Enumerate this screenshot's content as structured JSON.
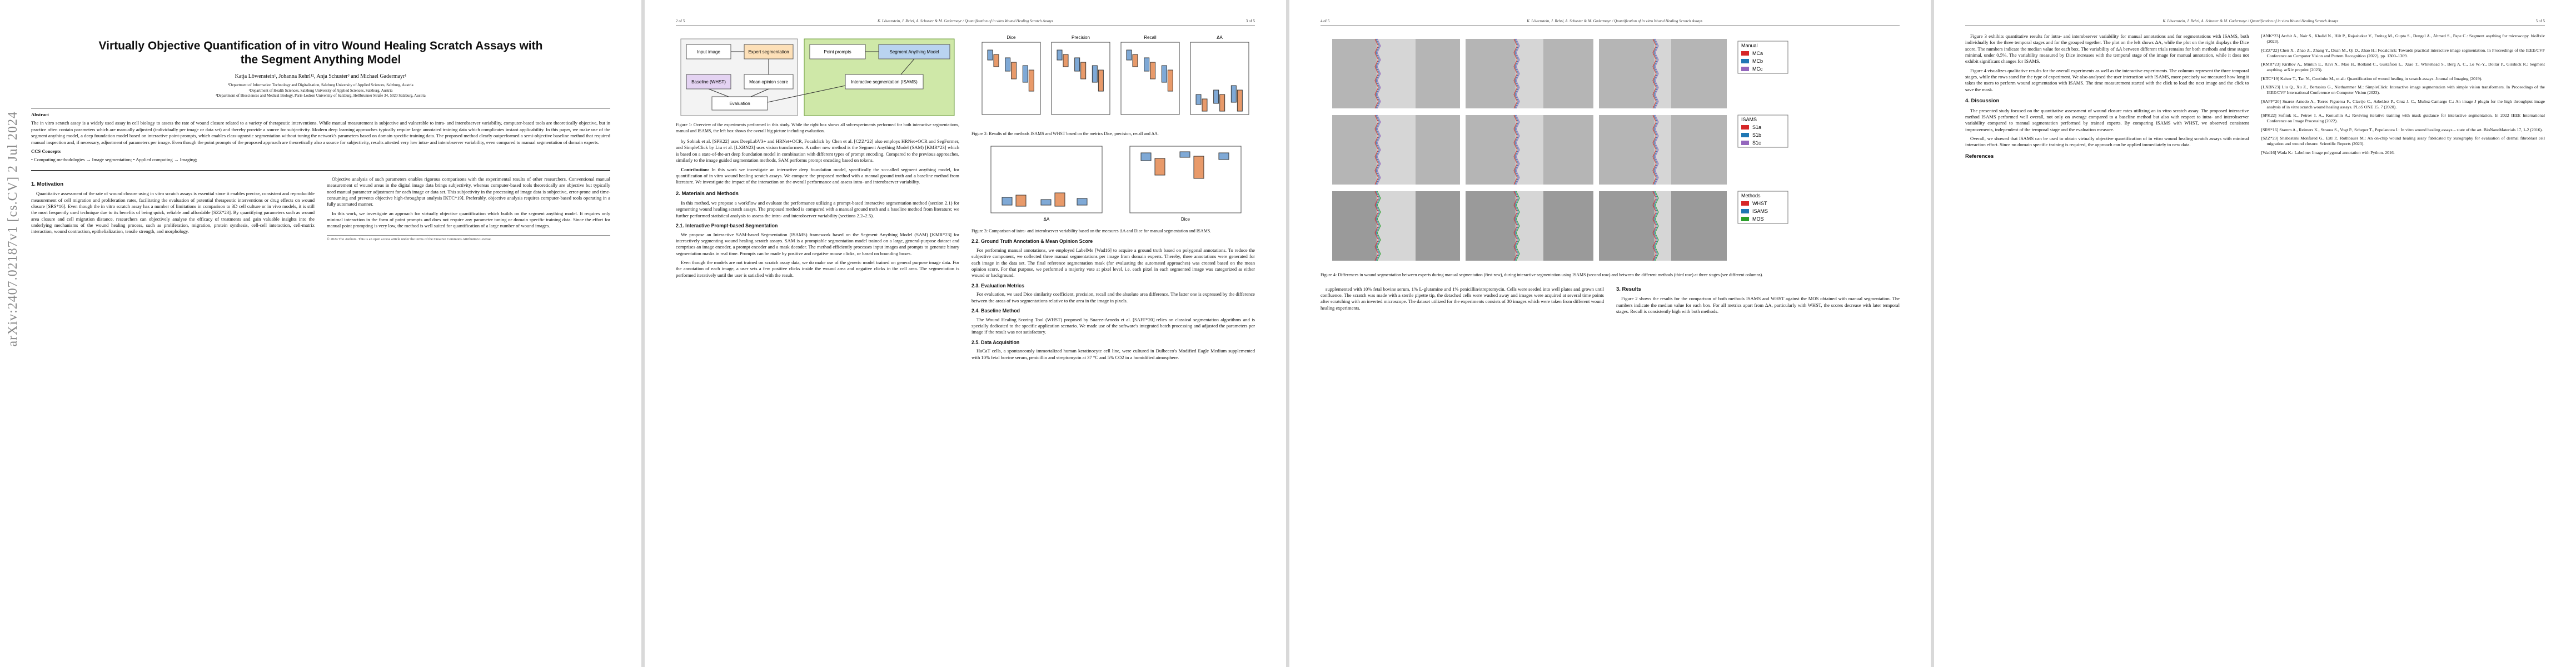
{
  "arxiv_stamp": "arXiv:2407.02187v1 [cs.CV] 2 Jul 2024",
  "running_title": "K. Löwenstein, J. Rehrl, A. Schuster & M. Gadermayr / Quantification of in vitro Wound Healing Scratch Assays",
  "page_numbers": [
    "2 of 5",
    "3 of 5",
    "4 of 5",
    "5 of 5"
  ],
  "page1": {
    "title": "Virtually Objective Quantification of in vitro Wound Healing Scratch Assays with the Segment Anything Model",
    "authors": "Katja Löwenstein¹, Johanna Rehrl¹², Anja Schuster³ and Michael Gadermayr¹",
    "affiliations": [
      "¹Department of Information Technology and Digitalisation, Salzburg University of Applied Sciences, Salzburg, Austria",
      "²Department of Health Sciences, Salzburg University of Applied Sciences, Salzburg, Austria",
      "³Department of Biosciences and Medical Biology, Paris-Lodron University of Salzburg, Hellbrunner Straße 34, 5020 Salzburg, Austria"
    ],
    "abstract_heading": "Abstract",
    "abstract": "The in vitro scratch assay is a widely used assay in cell biology to assess the rate of wound closure related to a variety of therapeutic interventions. While manual measurement is subjective and vulnerable to intra- and interobserver variability, computer-based tools are theoretically objective, but in practice often contain parameters which are manually adjusted (individually per image or data set) and thereby provide a source for subjectivity. Modern deep learning approaches typically require large annotated training data which complicates instant applicability. In this paper, we make use of the segment anything model, a deep foundation model based on interactive point-prompts, which enables class-agnostic segmentation without tuning the network's parameters based on domain specific training data. The proposed method clearly outperformed a semi-objective baseline method that required manual inspection and, if necessary, adjustment of parameters per image. Even though the point prompts of the proposed approach are theoretically also a source for subjectivity, results attested very low intra- and interobserver variability, even compared to manual segmentation of domain experts.",
    "ccs_heading": "CCS Concepts",
    "ccs": "• Computing methodologies → Image segmentation; • Applied computing → Imaging;",
    "section_heading": "1. Motivation",
    "paragraphs": [
      "Quantitative assessment of the rate of wound closure using in vitro scratch assays is essential since it enables precise, consistent and reproducible measurement of cell migration and proliferation rates, facilitating the evaluation of potential therapeutic interventions or drug effects on wound closure [SRS*16]. Even though the in vitro scratch assay has a number of limitations in comparison to 3D cell culture or in vivo models, it is still the most frequently used technique due to its benefits of being quick, reliable and affordable [SZZ*23]. By quantifying parameters such as wound area closure and cell migration distance, researchers can objectively analyse the efficacy of treatments and gain valuable insights into the underlying mechanisms of the wound healing process, such as proliferation, migration, protein synthesis, cell-cell interaction, cell-matrix interaction, wound contraction, epithelialization, tensile strength, and morphology.",
      "Objective analysis of such parameters enables rigorous comparisons with the experimental results of other researchers. Conventional manual measurement of wound areas in the digital image data brings subjectivity, whereas computer-based tools theoretically are objective but typically need manual parameter adjustment for each image or data set. This subjectivity in the processing of image data is subjective, error-prone and time-consuming and prevents objective high-throughput analysis [KTC*19]. Preferably, objective analysis requires computer-based tools operating in a fully automated manner.",
      "In this work, we investigate an approach for virtually objective quantification which builds on the segment anything model. It requires only minimal interaction in the form of point prompts and does not require any parameter tuning or domain specific training data. Since the effort for manual point prompting is very low, the method is well suited for quantification of a large number of wound images."
    ],
    "footnote": "© 2024 The Authors. This is an open access article under the terms of the Creative Commons Attribution License."
  },
  "page2": {
    "fig1_labels": [
      "Input image",
      "Expert segmentation",
      "Point prompts",
      "Segment Anything Model",
      "Interactive segmentation (ISAMS)",
      "Baseline (WHST)",
      "Mean opinion score",
      "Evaluation"
    ],
    "fig1_caption": "Figure 1: Overview of the experiments performed in this study. While the right box shows all sub-experiments performed for both interactive segmentations, manual and ISAMS, the left box shows the overall big picture including evaluation.",
    "col1": [
      "by Sobiak et al. [SPK22] uses DeepLabV3+ and HRNet+OCR, Focalclick by Chen et al. [CZZ*22] also employs HRNet+OCR and SegFormer, and SimpleClick by Liu et al. [LXBN23] uses vision transformers. A rather new method is the Segment Anything Model (SAM) [KMR*23] which is based on a state-of-the-art deep foundation model in combination with different types of prompt encoding. Compared to the previous approaches, similarly to the image guided segmentation methods, SAM performs prompt encoding based on tokens."
    ],
    "contribution_heading": "Contribution:",
    "contribution": "In this work we investigate an interactive deep foundation model, specifically the so-called segment anything model, for quantification of in vitro wound healing scratch assays. We compare the proposed method with a manual ground truth and a baseline method from literature. We investigate the impact of the interaction on the overall performance and assess intra- and interobserver variability.",
    "methods_heading": "2. Materials and Methods",
    "methods_intro": "In this method, we propose a workflow and evaluate the performance utilizing a prompt-based interactive segmentation method (section 2.1) for segmenting wound healing scratch assays. The proposed method is compared with a manual ground truth and a baseline method from literature; we further performed statistical analysis to assess the intra- and interobserver variability (sections 2.2–2.5).",
    "isams_heading": "2.1. Interactive Prompt-based Segmentation",
    "isams": "We propose an Interactive SAM-based Segmentation (ISAMS) framework based on the Segment Anything Model (SAM) [KMR*23] for interactively segmenting wound healing scratch assays. SAM is a promptable segmentation model trained on a large, general-purpose dataset and comprises an image encoder, a prompt encoder and a mask decoder. The method efficiently processes input images and prompts to generate binary segmentation masks in real time. Prompts can be made by positive and negative mouse clicks, or based on bounding boxes.",
    "col3": [
      "Even though the models are not trained on scratch assay data, we do make use of the generic model trained on general purpose image data. For the annotation of each image, a user sets a few positive clicks inside the wound area and negative clicks in the cell area. The segmentation is performed iteratively until the user is satisfied with the result."
    ],
    "fig2_panels": [
      "Dice",
      "Precision",
      "Recall",
      "ΔA"
    ],
    "fig2_caption": "Figure 2: Results of the methods ISAMS and WHST based on the metrics Dice, precision, recall and ΔA.",
    "fig3_caption": "Figure 3: Comparison of intra- and interobserver variability based on the measures ΔA and Dice for manual segmentation and ISAMS.",
    "gt_heading": "2.2. Ground Truth Annotation & Mean Opinion Score",
    "gt": "For performing manual annotations, we employed LabelMe [Wad16] to acquire a ground truth based on polygonal annotations. To reduce the subjective component, we collected three manual segmentations per image from domain experts. Thereby, three annotations were generated for each image in the data set. The final reference segmentation mask (for evaluating the automated approaches) was created based on the mean opinion score. For that purpose, we performed a majority vote at pixel level, i.e. each pixel in each segmented image was categorized as either wound or background.",
    "metrics_heading": "2.3. Evaluation Metrics",
    "metrics": "For evaluation, we used Dice similarity coefficient, precision, recall and the absolute area difference. The latter one is expressed by the difference between the areas of two segmentations relative to the area in the image in pixels.",
    "baseline_heading": "2.4. Baseline Method",
    "baseline": "The Wound Healing Scoring Tool (WHST) proposed by Suarez-Arnedo et al. [SAFF*20] relies on classical segmentation algorithms and is specially dedicated to the specific application scenario. We made use of the software's integrated batch processing and adjusted the parameters per image if the result was not satisfactory.",
    "data_heading": "2.5. Data Acquisition",
    "data": "HaCaT cells, a spontaneously immortalized human keratinocyte cell line, were cultured in Dulbecco's Modified Eagle Medium supplemented with 10% fetal bovine serum, penicillin and streptomycin at 37 °C and 5% CO2 in a humidified atmosphere."
  },
  "page3": {
    "legend_manual_title": "Manual",
    "legend_manual": [
      "MCa",
      "MCb",
      "MCc"
    ],
    "legend_isams_title": "ISAMS",
    "legend_isams": [
      "S1a",
      "S1b",
      "S1c"
    ],
    "legend_methods_title": "Methods",
    "legend_methods": [
      "WHST",
      "ISAMS",
      "MOS"
    ],
    "fig4_caption": "Figure 4: Differences in wound segmentation between experts during manual segmentation (first row), during interactive segmentation using ISAMS (second row) and between the different methods (third row) at three stages (see different columns).",
    "col1": [
      "supplemented with 10% fetal bovine serum, 1% L-glutamine and 1% penicillin/streptomycin. Cells were seeded into well plates and grown until confluence. The scratch was made with a sterile pipette tip, the detached cells were washed away and images were acquired at several time points after scratching with an inverted microscope. The dataset utilized for the experiments consists of 30 images which were taken from different wound healing experiments."
    ],
    "results_heading": "3. Results",
    "results": "Figure 2 shows the results for the comparison of both methods ISAMS and WHST against the MOS obtained with manual segmentation. The numbers indicate the median value for each box. For all metrics apart from ΔA, particularly with WHST, the scores decrease with later temporal stages. Recall is consistently high with both methods."
  },
  "page4": {
    "col1": [
      "Figure 3 exhibits quantitative results for intra- and interobserver variability for manual annotations and for segmentations with ISAMS, both individually for the three temporal stages and for the grouped together. The plot on the left shows ΔA, while the plot on the right displays the Dice score. The numbers indicate the median value for each box. The variability of ΔA between different trials remains for both methods and time stages minimal, under 0.5%. The variability measured by Dice increases with the temporal stage of the image for manual annotation, while it does not exhibit significant changes for ISAMS.",
      "Figure 4 visualizes qualitative results for the overall experiments as well as the interactive experiments. The columns represent the three temporal stages, while the rows stand for the type of experiment. We also analysed the user interaction with ISAMS, more precisely we measured how long it takes the users to perform wound segmentation with ISAMS. The time measurement started with the click to load the next image and the click to save the mask."
    ],
    "discussion_heading": "4. Discussion",
    "discussion": [
      "The presented study focused on the quantitative assessment of wound closure rates utilizing an in vitro scratch assay. The proposed interactive method ISAMS performed well overall, not only on average compared to a baseline method but also with respect to intra- and interobserver variability compared to manual segmentation performed by trained experts. By comparing ISAMS with WHST, we observed consistent improvements, independent of the temporal stage and the evaluation measure.",
      "Overall, we showed that ISAMS can be used to obtain virtually objective quantification of in vitro wound healing scratch assays with minimal interaction effort. Since no domain specific training is required, the approach can be applied immediately to new data."
    ],
    "references_heading": "References",
    "references": [
      "[ANK*23] Archit A., Nair S., Khalid N., Hilt P., Rajashekar V., Freitag M., Gupta S., Dengel A., Ahmed S., Pape C.: Segment anything for microscopy. bioRxiv (2023).",
      "[CZZ*22] Chen X., Zhao Z., Zhang Y., Duan M., Qi D., Zhao H.: Focalclick: Towards practical interactive image segmentation. In Proceedings of the IEEE/CVF Conference on Computer Vision and Pattern Recognition (2022), pp. 1300–1309.",
      "[KMR*23] Kirillov A., Mintun E., Ravi N., Mao H., Rolland C., Gustafson L., Xiao T., Whitehead S., Berg A. C., Lo W.-Y., Dollár P., Girshick R.: Segment anything. arXiv preprint (2023).",
      "[KTC*19] Kaiser T., Tan N., Coutinho M., et al.: Quantification of wound healing in scratch assays. Journal of Imaging (2019).",
      "[LXBN23] Liu Q., Xu Z., Bertasius G., Niethammer M.: SimpleClick: Interactive image segmentation with simple vision transformers. In Proceedings of the IEEE/CVF International Conference on Computer Vision (2023).",
      "[SAFF*20] Suarez-Arnedo A., Torres Figueroa F., Clavijo C., Arbeláez P., Cruz J. C., Muñoz-Camargo C.: An image J plugin for the high throughput image analysis of in vitro scratch wound healing assays. PLoS ONE 15, 7 (2020).",
      "[SPK22] Sofiiuk K., Petrov I. A., Konushin A.: Reviving iterative training with mask guidance for interactive segmentation. In 2022 IEEE International Conference on Image Processing (2022).",
      "[SRS*16] Stamm A., Reimers K., Strauss S., Vogt P., Scheper T., Pepelanova I.: In vitro wound healing assays – state of the art. BioNanoMaterials 17, 1-2 (2016).",
      "[SZZ*23] Shabestani Monfared G., Ertl P., Rothbauer M.: An on-chip wound healing assay fabricated by xurography for evaluation of dermal fibroblast cell migration and wound closure. Scientific Reports (2023).",
      "[Wad16] Wada K.: Labelme: Image polygonal annotation with Python. 2016."
    ]
  }
}
